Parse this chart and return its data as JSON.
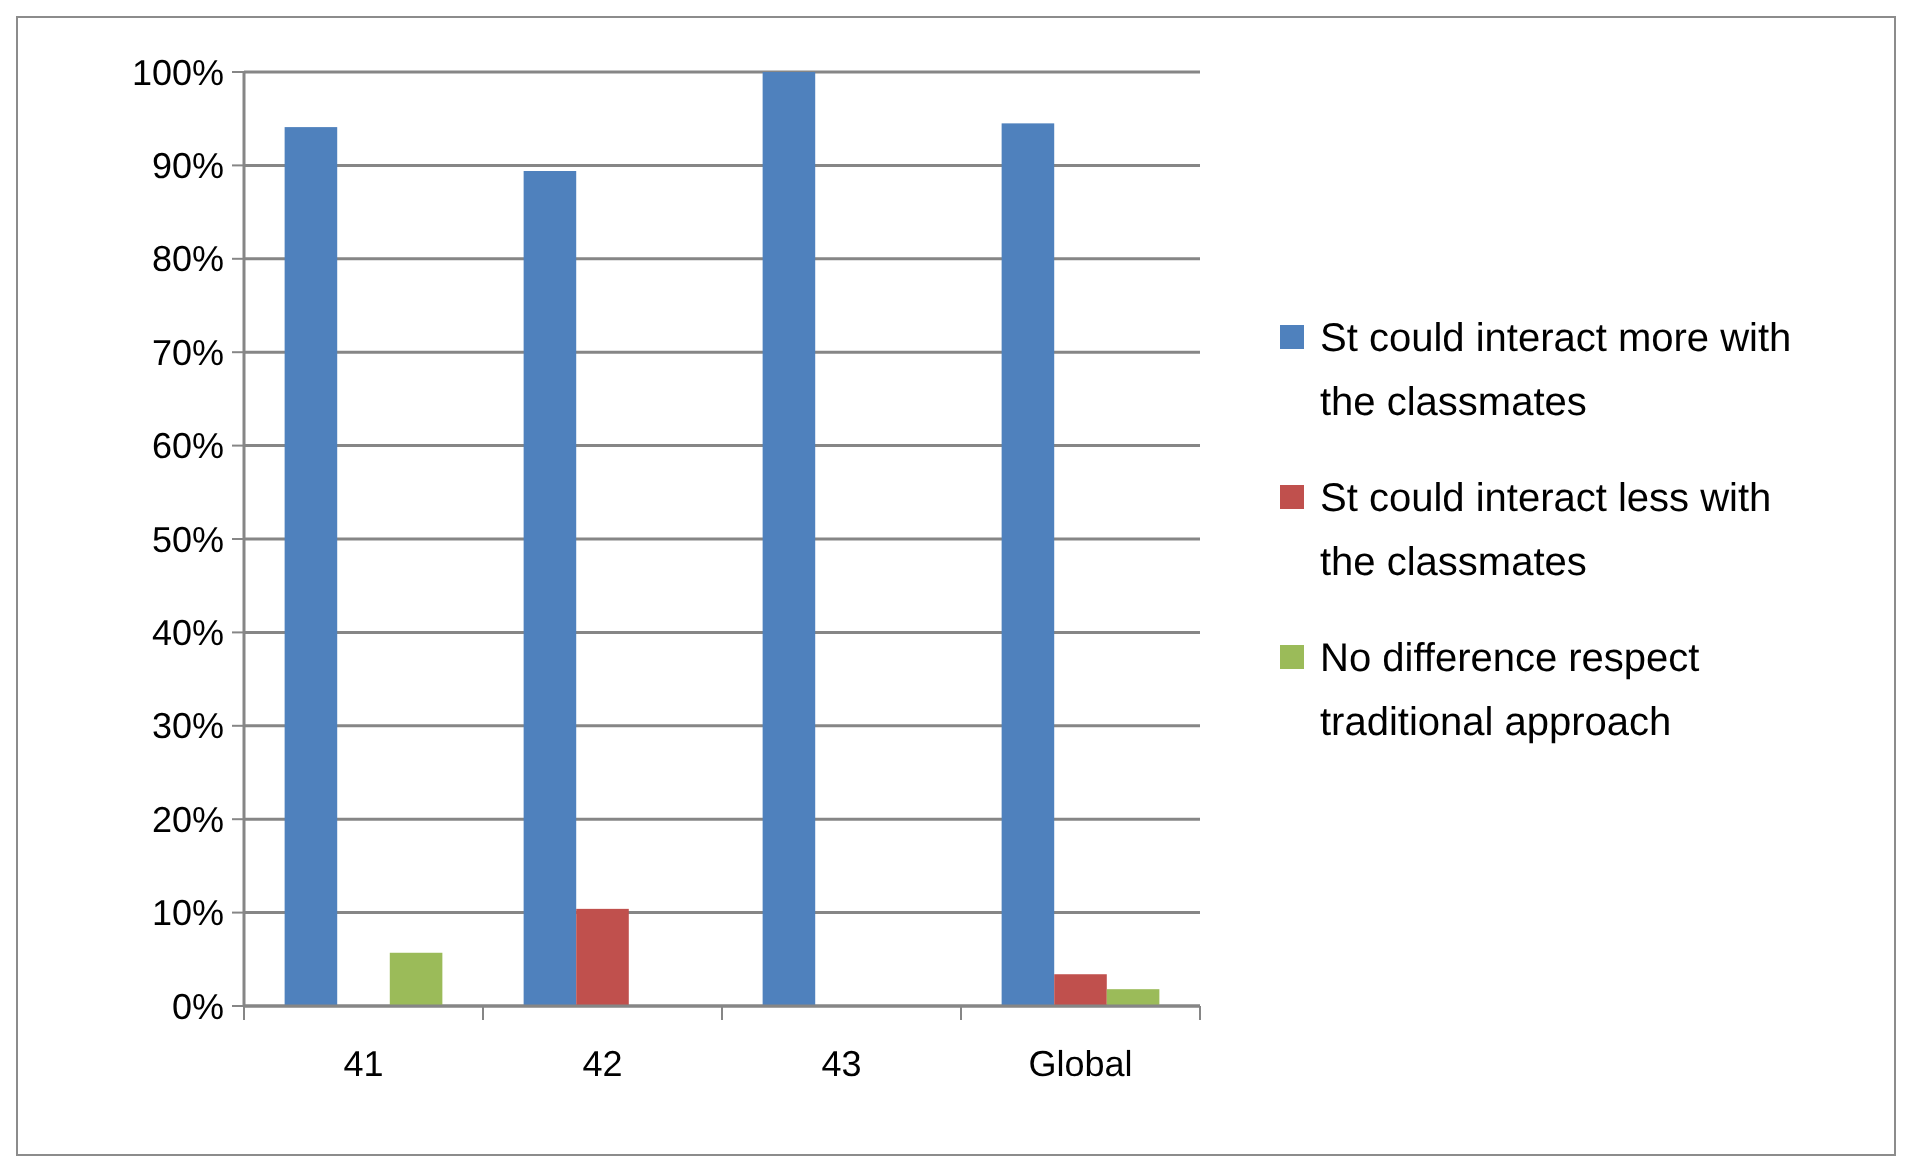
{
  "chart_data": {
    "type": "bar",
    "categories": [
      "41",
      "42",
      "43",
      "Global"
    ],
    "series": [
      {
        "name": "St could interact more with the classmates",
        "color": "#4f81bd",
        "values": [
          94.1,
          89.4,
          100,
          94.5
        ]
      },
      {
        "name": "St could interact less with the classmates",
        "color": "#c0504d",
        "values": [
          0,
          10.4,
          0,
          3.4
        ]
      },
      {
        "name": "No difference respect traditional approach",
        "color": "#9bbb59",
        "values": [
          5.7,
          0,
          0,
          1.8
        ]
      }
    ],
    "ylim": [
      0,
      100
    ],
    "yticks": [
      {
        "value": 0,
        "label": "0%"
      },
      {
        "value": 10,
        "label": "10%"
      },
      {
        "value": 20,
        "label": "20%"
      },
      {
        "value": 30,
        "label": "30%"
      },
      {
        "value": 40,
        "label": "40%"
      },
      {
        "value": 50,
        "label": "50%"
      },
      {
        "value": 60,
        "label": "60%"
      },
      {
        "value": 70,
        "label": "70%"
      },
      {
        "value": 80,
        "label": "80%"
      },
      {
        "value": 90,
        "label": "90%"
      },
      {
        "value": 100,
        "label": "100%"
      }
    ],
    "grid": "y",
    "legend": "right"
  }
}
